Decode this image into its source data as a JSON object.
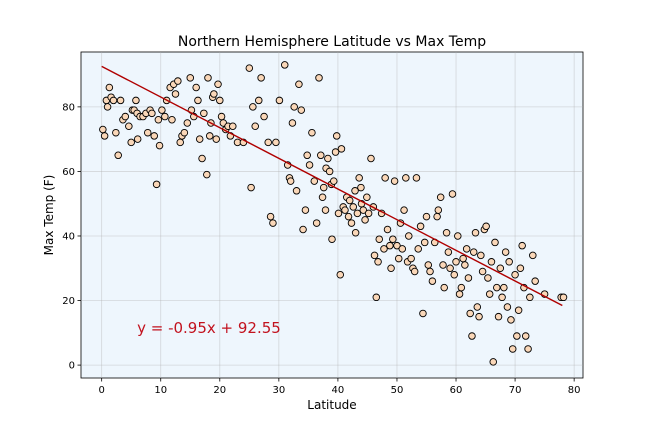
{
  "chart_data": {
    "type": "scatter",
    "title": "Northern Hemisphere Latitude vs Max Temp",
    "xlabel": "Latitude",
    "ylabel": "Max Temp (F)",
    "xlim": [
      -3.5,
      81.5
    ],
    "ylim": [
      -4,
      97
    ],
    "xticks": [
      0,
      10,
      20,
      30,
      40,
      50,
      60,
      70,
      80
    ],
    "yticks": [
      0,
      20,
      40,
      60,
      80
    ],
    "grid": true,
    "background": "#eef6fd",
    "marker_fill": "#fad7b8",
    "marker_edge": "#000000",
    "regression": {
      "equation": "y = -0.95x + 92.55",
      "slope": -0.95,
      "intercept": 92.55,
      "x_range": [
        0,
        78
      ],
      "line_color": "#b00000",
      "text_color": "#c2121e",
      "annotation_at": [
        6,
        10
      ]
    },
    "points": [
      [
        0.2,
        73
      ],
      [
        0.5,
        71
      ],
      [
        0.8,
        82
      ],
      [
        1.0,
        80
      ],
      [
        1.3,
        86
      ],
      [
        1.6,
        83
      ],
      [
        2.0,
        82
      ],
      [
        2.4,
        72
      ],
      [
        2.8,
        65
      ],
      [
        3.2,
        82
      ],
      [
        3.6,
        76
      ],
      [
        4.0,
        77
      ],
      [
        4.6,
        74
      ],
      [
        5.0,
        69
      ],
      [
        5.2,
        79
      ],
      [
        5.5,
        79
      ],
      [
        5.8,
        82
      ],
      [
        6.0,
        78
      ],
      [
        6.1,
        70
      ],
      [
        6.5,
        77
      ],
      [
        7.0,
        77
      ],
      [
        7.5,
        78
      ],
      [
        7.8,
        72
      ],
      [
        8.2,
        79
      ],
      [
        8.5,
        78
      ],
      [
        8.9,
        71
      ],
      [
        9.3,
        56
      ],
      [
        9.6,
        76
      ],
      [
        9.8,
        68
      ],
      [
        10.2,
        79
      ],
      [
        10.7,
        77
      ],
      [
        11.0,
        82
      ],
      [
        11.6,
        86
      ],
      [
        11.9,
        76
      ],
      [
        12.2,
        87
      ],
      [
        12.5,
        84
      ],
      [
        12.9,
        88
      ],
      [
        13.3,
        69
      ],
      [
        13.6,
        71
      ],
      [
        14.0,
        72
      ],
      [
        14.5,
        75
      ],
      [
        15.0,
        89
      ],
      [
        15.2,
        79
      ],
      [
        15.6,
        77
      ],
      [
        16.0,
        86
      ],
      [
        16.3,
        82
      ],
      [
        16.6,
        70
      ],
      [
        17.0,
        64
      ],
      [
        17.3,
        78
      ],
      [
        17.8,
        59
      ],
      [
        18.0,
        89
      ],
      [
        18.3,
        71
      ],
      [
        18.5,
        75
      ],
      [
        18.8,
        83
      ],
      [
        19.0,
        84
      ],
      [
        19.4,
        70
      ],
      [
        19.7,
        87
      ],
      [
        20.0,
        82
      ],
      [
        20.3,
        77
      ],
      [
        20.6,
        75
      ],
      [
        21.0,
        73
      ],
      [
        21.4,
        74
      ],
      [
        21.8,
        71
      ],
      [
        22.2,
        74
      ],
      [
        23.0,
        69
      ],
      [
        24.0,
        69
      ],
      [
        25.0,
        92
      ],
      [
        25.3,
        55
      ],
      [
        25.6,
        80
      ],
      [
        26.0,
        74
      ],
      [
        26.6,
        82
      ],
      [
        27.0,
        89
      ],
      [
        27.5,
        77
      ],
      [
        28.2,
        69
      ],
      [
        28.6,
        46
      ],
      [
        29.0,
        44
      ],
      [
        29.5,
        69
      ],
      [
        30.1,
        82
      ],
      [
        31.0,
        93
      ],
      [
        31.5,
        62
      ],
      [
        31.8,
        58
      ],
      [
        32.0,
        57
      ],
      [
        32.3,
        75
      ],
      [
        32.6,
        80
      ],
      [
        33.0,
        54
      ],
      [
        33.4,
        87
      ],
      [
        33.8,
        79
      ],
      [
        34.1,
        42
      ],
      [
        34.5,
        48
      ],
      [
        34.8,
        65
      ],
      [
        35.2,
        62
      ],
      [
        35.6,
        72
      ],
      [
        36.0,
        57
      ],
      [
        36.4,
        44
      ],
      [
        36.8,
        89
      ],
      [
        37.1,
        65
      ],
      [
        37.4,
        52
      ],
      [
        37.6,
        55
      ],
      [
        37.9,
        48
      ],
      [
        38.0,
        61
      ],
      [
        38.3,
        64
      ],
      [
        38.6,
        60
      ],
      [
        38.9,
        56
      ],
      [
        39.0,
        39
      ],
      [
        39.3,
        57
      ],
      [
        39.6,
        66
      ],
      [
        39.8,
        71
      ],
      [
        40.1,
        47
      ],
      [
        40.4,
        28
      ],
      [
        40.6,
        67
      ],
      [
        40.9,
        49
      ],
      [
        41.2,
        48
      ],
      [
        41.5,
        52
      ],
      [
        41.8,
        46
      ],
      [
        42.0,
        51
      ],
      [
        42.3,
        44
      ],
      [
        42.6,
        49
      ],
      [
        42.9,
        54
      ],
      [
        43.0,
        41
      ],
      [
        43.3,
        47
      ],
      [
        43.6,
        58
      ],
      [
        43.9,
        55
      ],
      [
        44.0,
        50
      ],
      [
        44.3,
        48
      ],
      [
        44.6,
        45
      ],
      [
        44.9,
        52
      ],
      [
        45.2,
        47
      ],
      [
        45.6,
        64
      ],
      [
        46.0,
        49
      ],
      [
        46.2,
        34
      ],
      [
        46.5,
        21
      ],
      [
        46.8,
        32
      ],
      [
        47.0,
        39
      ],
      [
        47.4,
        47
      ],
      [
        47.8,
        36
      ],
      [
        48.0,
        58
      ],
      [
        48.4,
        42
      ],
      [
        48.8,
        37
      ],
      [
        49.0,
        30
      ],
      [
        49.3,
        39
      ],
      [
        49.6,
        57
      ],
      [
        50.0,
        37
      ],
      [
        50.3,
        33
      ],
      [
        50.6,
        44
      ],
      [
        50.9,
        36
      ],
      [
        51.2,
        48
      ],
      [
        51.5,
        58
      ],
      [
        51.8,
        32
      ],
      [
        52.0,
        40
      ],
      [
        52.4,
        33
      ],
      [
        52.7,
        30
      ],
      [
        53.0,
        29
      ],
      [
        53.3,
        58
      ],
      [
        53.6,
        36
      ],
      [
        54.0,
        43
      ],
      [
        54.4,
        16
      ],
      [
        54.7,
        38
      ],
      [
        55.0,
        46
      ],
      [
        55.3,
        31
      ],
      [
        55.6,
        29
      ],
      [
        56.0,
        26
      ],
      [
        56.4,
        38
      ],
      [
        56.8,
        46
      ],
      [
        57.0,
        48
      ],
      [
        57.4,
        52
      ],
      [
        57.8,
        31
      ],
      [
        58.0,
        24
      ],
      [
        58.4,
        41
      ],
      [
        58.7,
        35
      ],
      [
        59.0,
        30
      ],
      [
        59.4,
        53
      ],
      [
        59.7,
        28
      ],
      [
        60.0,
        32
      ],
      [
        60.3,
        40
      ],
      [
        60.6,
        22
      ],
      [
        60.9,
        24
      ],
      [
        61.2,
        33
      ],
      [
        61.5,
        31
      ],
      [
        61.8,
        36
      ],
      [
        62.1,
        27
      ],
      [
        62.4,
        16
      ],
      [
        62.7,
        9
      ],
      [
        63.0,
        35
      ],
      [
        63.3,
        41
      ],
      [
        63.6,
        18
      ],
      [
        63.9,
        15
      ],
      [
        64.2,
        34
      ],
      [
        64.5,
        29
      ],
      [
        64.8,
        42
      ],
      [
        65.1,
        43
      ],
      [
        65.4,
        27
      ],
      [
        65.7,
        22
      ],
      [
        66.0,
        32
      ],
      [
        66.3,
        1
      ],
      [
        66.6,
        38
      ],
      [
        66.9,
        24
      ],
      [
        67.2,
        15
      ],
      [
        67.5,
        30
      ],
      [
        67.8,
        21
      ],
      [
        68.1,
        24
      ],
      [
        68.4,
        35
      ],
      [
        68.7,
        18
      ],
      [
        69.0,
        32
      ],
      [
        69.3,
        14
      ],
      [
        69.6,
        5
      ],
      [
        70.0,
        28
      ],
      [
        70.3,
        9
      ],
      [
        70.6,
        17
      ],
      [
        70.9,
        30
      ],
      [
        71.2,
        37
      ],
      [
        71.5,
        24
      ],
      [
        71.8,
        9
      ],
      [
        72.2,
        5
      ],
      [
        72.5,
        21
      ],
      [
        73.0,
        34
      ],
      [
        73.4,
        26
      ],
      [
        77.8,
        21
      ],
      [
        78.2,
        21
      ],
      [
        75.0,
        22
      ]
    ]
  }
}
